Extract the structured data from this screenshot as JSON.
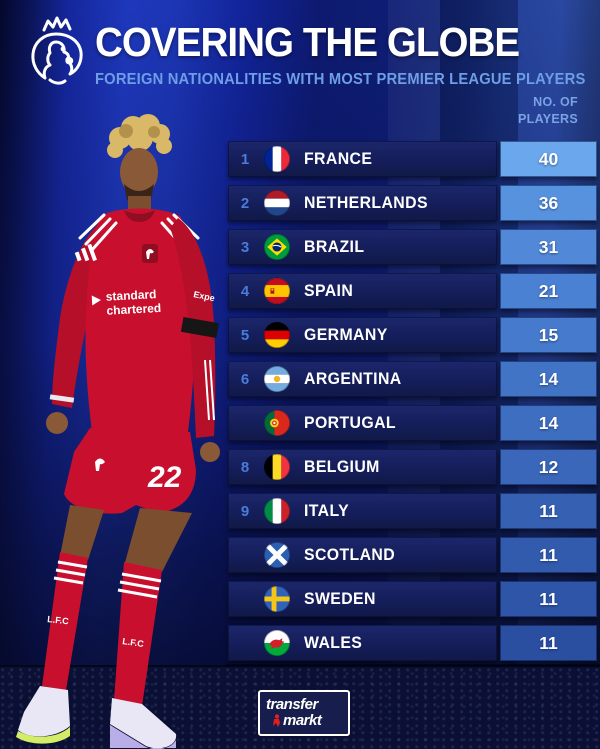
{
  "header": {
    "title": "COVERING THE GLOBE",
    "subtitle": "FOREIGN NATIONALITIES  WITH MOST PREMIER LEAGUE PLAYERS",
    "logo_icon": "premier-league-lion-icon"
  },
  "table": {
    "column_header_line1": "NO. OF",
    "column_header_line2": "PLAYERS",
    "rows": [
      {
        "rank": "1",
        "country": "FRANCE",
        "players": "40",
        "flag": "france"
      },
      {
        "rank": "2",
        "country": "NETHERLANDS",
        "players": "36",
        "flag": "netherlands"
      },
      {
        "rank": "3",
        "country": "BRAZIL",
        "players": "31",
        "flag": "brazil"
      },
      {
        "rank": "4",
        "country": "SPAIN",
        "players": "21",
        "flag": "spain"
      },
      {
        "rank": "5",
        "country": "GERMANY",
        "players": "15",
        "flag": "germany"
      },
      {
        "rank": "6",
        "country": "ARGENTINA",
        "players": "14",
        "flag": "argentina"
      },
      {
        "rank": "",
        "country": "PORTUGAL",
        "players": "14",
        "flag": "portugal"
      },
      {
        "rank": "8",
        "country": "BELGIUM",
        "players": "12",
        "flag": "belgium"
      },
      {
        "rank": "9",
        "country": "ITALY",
        "players": "11",
        "flag": "italy"
      },
      {
        "rank": "",
        "country": "SCOTLAND",
        "players": "11",
        "flag": "scotland"
      },
      {
        "rank": "",
        "country": "SWEDEN",
        "players": "11",
        "flag": "sweden"
      },
      {
        "rank": "",
        "country": "WALES",
        "players": "11",
        "flag": "wales"
      }
    ],
    "value_cell_colors": [
      "#6BA7EC",
      "#5792DE",
      "#5189D8",
      "#4B81D2",
      "#467ACC",
      "#4274C6",
      "#3E6EC0",
      "#3A67BA",
      "#3661B3",
      "#325BAD",
      "#2E55A7",
      "#2A4FA0"
    ]
  },
  "player": {
    "shirt_sponsor_line1": "standard",
    "shirt_sponsor_line2": "chartered",
    "sleeve_text": "Expe",
    "shorts_number": "22",
    "sock_text": "L.F.C"
  },
  "footer": {
    "brand_line1": "transfer",
    "brand_line2": "markt"
  },
  "colors": {
    "accent_light_cell": "#6BA7EC",
    "accent_dark_cell": "#2A4FA0",
    "row_left_bg": "#141D58",
    "rank_text": "#4A7CD8",
    "subtitle_text": "#6D9EE6",
    "column_header_text": "#7AA2E4",
    "kit_red": "#C8102E"
  },
  "flags": {
    "france": {
      "type": "v3",
      "colors": [
        "#002395",
        "#ffffff",
        "#ed2939"
      ]
    },
    "netherlands": {
      "type": "h3",
      "colors": [
        "#ae1c28",
        "#ffffff",
        "#21468b"
      ]
    },
    "brazil": {
      "type": "br",
      "colors": [
        "#009c3b",
        "#ffdf00",
        "#002776"
      ]
    },
    "spain": {
      "type": "es",
      "colors": [
        "#c60b1e",
        "#ffc400",
        "#c60b1e"
      ]
    },
    "germany": {
      "type": "h3",
      "colors": [
        "#000000",
        "#dd0000",
        "#ffce00"
      ]
    },
    "argentina": {
      "type": "ar",
      "colors": [
        "#74acdf",
        "#ffffff",
        "#74acdf",
        "#f0b429"
      ]
    },
    "portugal": {
      "type": "pt",
      "colors": [
        "#046a38",
        "#da291c",
        "#f7d117"
      ]
    },
    "belgium": {
      "type": "v3",
      "colors": [
        "#000000",
        "#fdda24",
        "#ef3340"
      ]
    },
    "italy": {
      "type": "v3",
      "colors": [
        "#008c45",
        "#ffffff",
        "#cd212a"
      ]
    },
    "scotland": {
      "type": "sct",
      "colors": [
        "#2b5fb0",
        "#ffffff"
      ]
    },
    "sweden": {
      "type": "swe",
      "colors": [
        "#2f62b8",
        "#f5c518"
      ]
    },
    "wales": {
      "type": "wal",
      "colors": [
        "#ffffff",
        "#00ab39",
        "#d21f2a"
      ]
    }
  },
  "chart_data": {
    "type": "table",
    "title": "COVERING THE GLOBE",
    "subtitle": "FOREIGN NATIONALITIES WITH MOST PREMIER LEAGUE PLAYERS",
    "value_label": "NO. OF PLAYERS",
    "categories": [
      "France",
      "Netherlands",
      "Brazil",
      "Spain",
      "Germany",
      "Argentina",
      "Portugal",
      "Belgium",
      "Italy",
      "Scotland",
      "Sweden",
      "Wales"
    ],
    "values": [
      40,
      36,
      31,
      21,
      15,
      14,
      14,
      12,
      11,
      11,
      11,
      11
    ],
    "displayed_ranks": [
      1,
      2,
      3,
      4,
      5,
      6,
      null,
      8,
      9,
      null,
      null,
      null
    ],
    "legend_position": "none",
    "grid": false
  }
}
